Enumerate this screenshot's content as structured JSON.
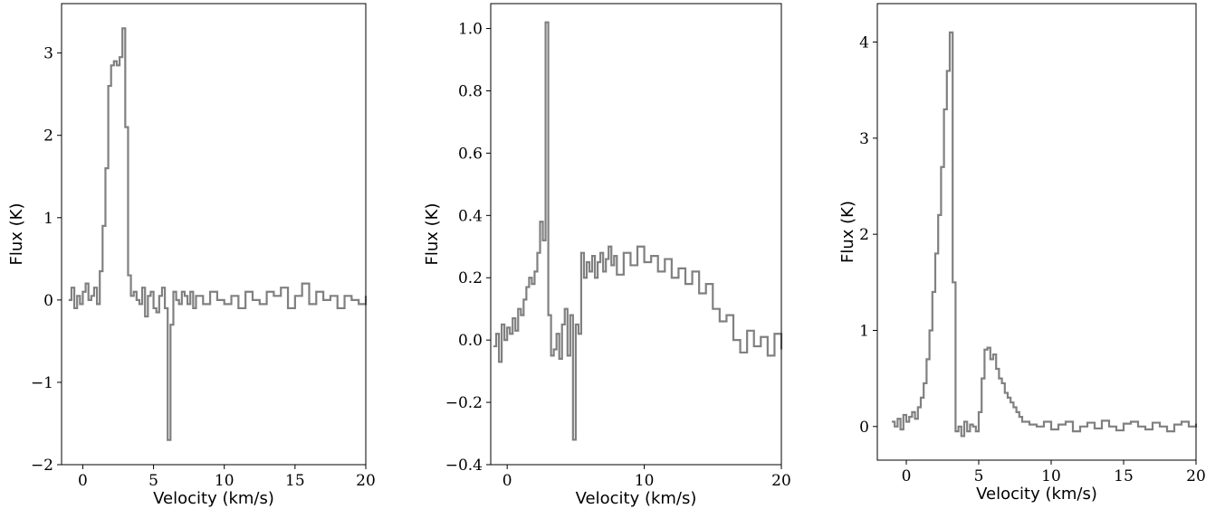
{
  "colors": {
    "line": "#808080"
  },
  "chart_data": [
    {
      "type": "line",
      "step": true,
      "xlabel": "Velocity (km/s)",
      "ylabel": "Flux (K)",
      "xlim": [
        -1.5,
        20
      ],
      "ylim": [
        -2.0,
        3.6
      ],
      "xticks": [
        {
          "v": 0,
          "label": "0"
        },
        {
          "v": 5,
          "label": "5"
        },
        {
          "v": 10,
          "label": "10"
        },
        {
          "v": 15,
          "label": "15"
        },
        {
          "v": 20,
          "label": "20"
        }
      ],
      "yticks": [
        {
          "v": -2,
          "label": "−2"
        },
        {
          "v": -1,
          "label": "−1"
        },
        {
          "v": 0,
          "label": "0"
        },
        {
          "v": 1,
          "label": "1"
        },
        {
          "v": 2,
          "label": "2"
        },
        {
          "v": 3,
          "label": "3"
        }
      ],
      "x": [
        -1.0,
        -0.8,
        -0.6,
        -0.4,
        -0.2,
        0.0,
        0.2,
        0.4,
        0.6,
        0.8,
        1.0,
        1.2,
        1.4,
        1.6,
        1.8,
        2.0,
        2.2,
        2.4,
        2.6,
        2.8,
        3.0,
        3.2,
        3.4,
        3.6,
        3.8,
        4.0,
        4.2,
        4.4,
        4.6,
        4.8,
        5.0,
        5.2,
        5.4,
        5.6,
        5.8,
        6.0,
        6.2,
        6.4,
        6.6,
        6.8,
        7.0,
        7.2,
        7.4,
        7.6,
        7.8,
        8.0,
        8.5,
        9.0,
        9.5,
        10.0,
        10.5,
        11.0,
        11.5,
        12.0,
        12.5,
        13.0,
        13.5,
        14.0,
        14.5,
        15.0,
        15.5,
        16.0,
        16.5,
        17.0,
        17.5,
        18.0,
        18.5,
        19.0,
        19.5,
        20.0
      ],
      "y": [
        0.0,
        0.15,
        -0.1,
        0.05,
        -0.05,
        0.1,
        0.2,
        0.0,
        0.05,
        0.15,
        -0.05,
        0.35,
        0.9,
        1.6,
        2.6,
        2.85,
        2.9,
        2.85,
        2.95,
        3.3,
        2.1,
        0.3,
        0.05,
        0.1,
        0.0,
        -0.05,
        0.15,
        -0.2,
        0.05,
        0.1,
        -0.1,
        -0.15,
        0.05,
        0.15,
        -0.1,
        -1.7,
        -0.3,
        0.1,
        0.0,
        -0.05,
        0.1,
        0.05,
        -0.05,
        0.1,
        -0.1,
        0.05,
        -0.05,
        0.1,
        0.0,
        -0.05,
        0.05,
        -0.1,
        0.1,
        0.0,
        -0.05,
        0.1,
        0.05,
        0.15,
        -0.1,
        0.05,
        0.2,
        -0.05,
        0.1,
        0.0,
        0.05,
        -0.1,
        0.05,
        0.0,
        -0.05,
        0.05
      ]
    },
    {
      "type": "line",
      "step": true,
      "xlabel": "Velocity (km/s)",
      "ylabel": "Flux (K)",
      "xlim": [
        -1.2,
        20
      ],
      "ylim": [
        -0.4,
        1.08
      ],
      "xticks": [
        {
          "v": 0,
          "label": "0"
        },
        {
          "v": 10,
          "label": "10"
        },
        {
          "v": 20,
          "label": "20"
        }
      ],
      "yticks": [
        {
          "v": -0.4,
          "label": "−0.4"
        },
        {
          "v": -0.2,
          "label": "−0.2"
        },
        {
          "v": 0.0,
          "label": "0.0"
        },
        {
          "v": 0.2,
          "label": "0.2"
        },
        {
          "v": 0.4,
          "label": "0.4"
        },
        {
          "v": 0.6,
          "label": "0.6"
        },
        {
          "v": 0.8,
          "label": "0.8"
        },
        {
          "v": 1.0,
          "label": "1.0"
        }
      ],
      "x": [
        -1.0,
        -0.8,
        -0.6,
        -0.4,
        -0.2,
        0.0,
        0.2,
        0.4,
        0.6,
        0.8,
        1.0,
        1.2,
        1.4,
        1.6,
        1.8,
        2.0,
        2.2,
        2.4,
        2.6,
        2.8,
        3.0,
        3.2,
        3.4,
        3.6,
        3.8,
        4.0,
        4.2,
        4.4,
        4.6,
        4.8,
        5.0,
        5.2,
        5.4,
        5.6,
        5.8,
        6.0,
        6.2,
        6.4,
        6.6,
        6.8,
        7.0,
        7.2,
        7.4,
        7.6,
        7.8,
        8.0,
        8.5,
        9.0,
        9.5,
        10.0,
        10.5,
        11.0,
        11.5,
        12.0,
        12.5,
        13.0,
        13.5,
        14.0,
        14.5,
        15.0,
        15.5,
        16.0,
        16.5,
        17.0,
        17.5,
        18.0,
        18.5,
        19.0,
        19.5,
        20.0
      ],
      "y": [
        -0.02,
        0.02,
        -0.07,
        0.05,
        0.0,
        0.04,
        0.02,
        0.07,
        0.03,
        0.1,
        0.08,
        0.13,
        0.17,
        0.2,
        0.18,
        0.22,
        0.28,
        0.38,
        0.32,
        1.02,
        0.08,
        -0.05,
        -0.03,
        0.02,
        -0.06,
        0.05,
        0.1,
        -0.05,
        0.08,
        -0.32,
        0.05,
        0.02,
        0.28,
        0.2,
        0.25,
        0.22,
        0.27,
        0.2,
        0.25,
        0.28,
        0.22,
        0.26,
        0.3,
        0.24,
        0.27,
        0.21,
        0.28,
        0.24,
        0.3,
        0.25,
        0.27,
        0.22,
        0.26,
        0.2,
        0.23,
        0.18,
        0.22,
        0.15,
        0.18,
        0.1,
        0.06,
        0.08,
        0.0,
        -0.04,
        0.03,
        -0.02,
        0.01,
        -0.05,
        0.02,
        -0.03
      ]
    },
    {
      "type": "line",
      "step": true,
      "xlabel": "Velocity (km/s)",
      "ylabel": "Flux (K)",
      "xlim": [
        -2.0,
        20
      ],
      "ylim": [
        -0.35,
        4.4
      ],
      "xticks": [
        {
          "v": 0,
          "label": "0"
        },
        {
          "v": 5,
          "label": "5"
        },
        {
          "v": 10,
          "label": "10"
        },
        {
          "v": 15,
          "label": "15"
        },
        {
          "v": 20,
          "label": "20"
        }
      ],
      "yticks": [
        {
          "v": 0,
          "label": "0"
        },
        {
          "v": 1,
          "label": "1"
        },
        {
          "v": 2,
          "label": "2"
        },
        {
          "v": 3,
          "label": "3"
        },
        {
          "v": 4,
          "label": "4"
        }
      ],
      "x": [
        -1.0,
        -0.8,
        -0.6,
        -0.4,
        -0.2,
        0.0,
        0.2,
        0.4,
        0.6,
        0.8,
        1.0,
        1.2,
        1.4,
        1.6,
        1.8,
        2.0,
        2.2,
        2.4,
        2.6,
        2.8,
        3.0,
        3.2,
        3.4,
        3.6,
        3.8,
        4.0,
        4.2,
        4.4,
        4.6,
        4.8,
        5.0,
        5.2,
        5.4,
        5.6,
        5.8,
        6.0,
        6.2,
        6.4,
        6.6,
        6.8,
        7.0,
        7.2,
        7.4,
        7.6,
        7.8,
        8.0,
        8.5,
        9.0,
        9.5,
        10.0,
        10.5,
        11.0,
        11.5,
        12.0,
        12.5,
        13.0,
        13.5,
        14.0,
        14.5,
        15.0,
        15.5,
        16.0,
        16.5,
        17.0,
        17.5,
        18.0,
        18.5,
        19.0,
        19.5,
        20.0
      ],
      "y": [
        0.05,
        0.0,
        0.08,
        -0.03,
        0.12,
        0.05,
        0.1,
        0.15,
        0.08,
        0.2,
        0.3,
        0.45,
        0.7,
        1.0,
        1.4,
        1.8,
        2.2,
        2.7,
        3.3,
        3.7,
        4.1,
        1.5,
        -0.05,
        0.0,
        -0.1,
        0.05,
        -0.05,
        0.02,
        0.0,
        -0.05,
        0.15,
        0.5,
        0.8,
        0.82,
        0.7,
        0.75,
        0.6,
        0.5,
        0.45,
        0.35,
        0.3,
        0.25,
        0.2,
        0.15,
        0.1,
        0.05,
        0.02,
        0.0,
        0.05,
        -0.03,
        0.02,
        0.05,
        -0.05,
        0.0,
        0.04,
        -0.02,
        0.06,
        0.0,
        -0.04,
        0.03,
        0.05,
        0.0,
        -0.03,
        0.04,
        0.0,
        -0.05,
        0.02,
        0.05,
        0.0,
        0.03
      ]
    }
  ]
}
